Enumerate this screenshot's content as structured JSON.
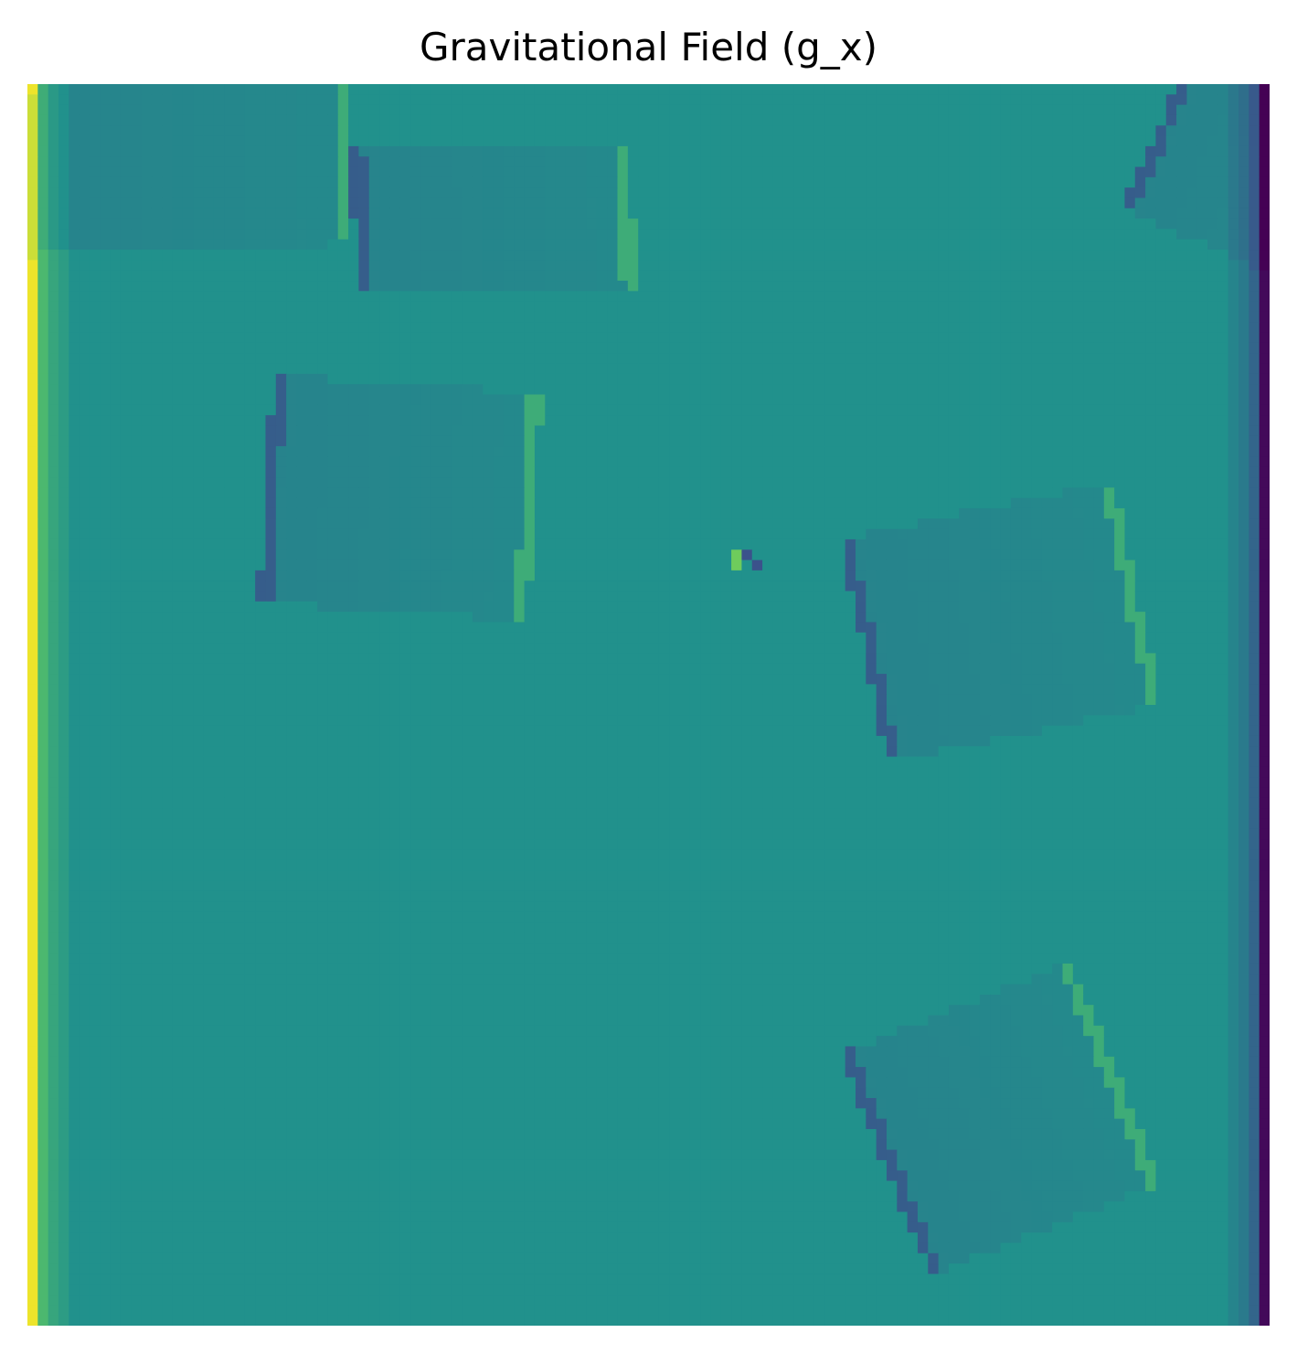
{
  "chart_data": {
    "type": "heatmap",
    "title": "Gravitational Field (g_x)",
    "xlabel": "",
    "ylabel": "",
    "axes_visible": false,
    "grid": false,
    "legend": "none",
    "colormap": "viridis",
    "colors": {
      "background": "#21918c",
      "low": "#440154",
      "mid_low": "#3b528b",
      "mid": "#21918c",
      "mid_high": "#27ad81",
      "high": "#5ec962",
      "max": "#fde725"
    },
    "grid_size": [
      120,
      120
    ],
    "features": [
      {
        "name": "left-edge",
        "kind": "edge",
        "side": "left"
      },
      {
        "name": "right-edge",
        "kind": "edge",
        "side": "right"
      },
      {
        "name": "top-left-block",
        "kind": "rectangle",
        "center": [
          15,
          8
        ],
        "size": [
          32,
          16
        ],
        "angle": -2
      },
      {
        "name": "top-center-block",
        "kind": "rectangle",
        "center": [
          45,
          13
        ],
        "size": [
          27,
          14
        ],
        "angle": -2
      },
      {
        "name": "top-right-block",
        "kind": "rectangle",
        "center": [
          122,
          5
        ],
        "size": [
          24,
          26
        ],
        "angle": 24
      },
      {
        "name": "middle-left-block",
        "kind": "rectangle",
        "center": [
          36,
          40
        ],
        "size": [
          26,
          22
        ],
        "angle": 4
      },
      {
        "name": "middle-right-block",
        "kind": "rectangle",
        "center": [
          94,
          52
        ],
        "size": [
          27,
          22
        ],
        "angle": -12
      },
      {
        "name": "lower-right-block",
        "kind": "rectangle",
        "center": [
          94,
          100
        ],
        "size": [
          24,
          23
        ],
        "angle": -22
      },
      {
        "name": "center-dipole",
        "kind": "dipole",
        "center": [
          69.5,
          45.5
        ]
      }
    ]
  }
}
